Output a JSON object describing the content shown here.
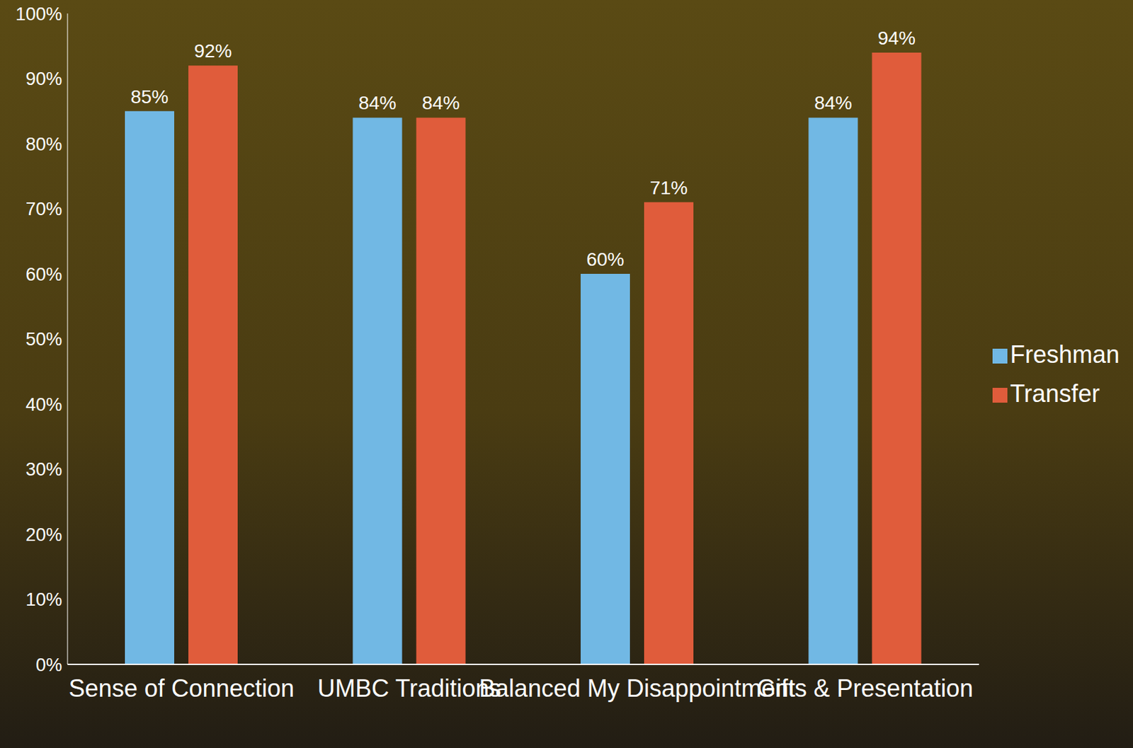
{
  "chart_data": {
    "type": "bar",
    "categories": [
      "Sense of Connection",
      "UMBC Traditions",
      "Balanced My Disappointment",
      "Gifts & Presentation"
    ],
    "series": [
      {
        "name": "Freshman",
        "color": "#71b8e4",
        "values": [
          85,
          84,
          60,
          84
        ],
        "value_labels": [
          "85%",
          "84%",
          "60%",
          "84%"
        ]
      },
      {
        "name": "Transfer",
        "color": "#e05c3b",
        "values": [
          92,
          84,
          71,
          94
        ],
        "value_labels": [
          "92%",
          "84%",
          "71%",
          "94%"
        ]
      }
    ],
    "ylim": [
      0,
      100
    ],
    "yticks": [
      {
        "value": 0,
        "label": "0%"
      },
      {
        "value": 10,
        "label": "10%"
      },
      {
        "value": 20,
        "label": "20%"
      },
      {
        "value": 30,
        "label": "30%"
      },
      {
        "value": 40,
        "label": "40%"
      },
      {
        "value": 50,
        "label": "50%"
      },
      {
        "value": 60,
        "label": "60%"
      },
      {
        "value": 70,
        "label": "70%"
      },
      {
        "value": 80,
        "label": "80%"
      },
      {
        "value": 90,
        "label": "90%"
      },
      {
        "value": 100,
        "label": "100%"
      }
    ],
    "grid": false,
    "legend": "right",
    "data_labels": true
  }
}
